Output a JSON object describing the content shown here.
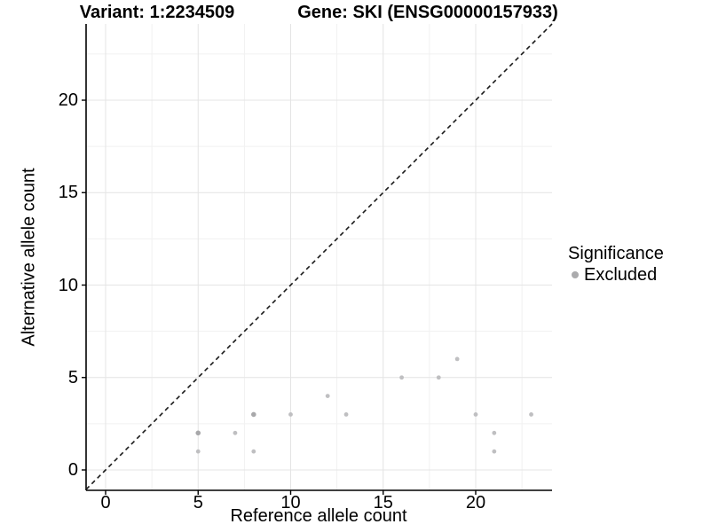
{
  "header": {
    "left_title": "Variant: 1:2234509",
    "right_title": "Gene: SKI (ENSG00000157933)"
  },
  "chart_data": {
    "type": "scatter",
    "title": "Variant: 1:2234509 | Gene: SKI (ENSG00000157933)",
    "xlabel": "Reference allele count",
    "ylabel": "Alternative allele count",
    "xlim": [
      -1.06,
      24.15
    ],
    "ylim": [
      -1.06,
      24.15
    ],
    "x_ticks": [
      0,
      5,
      10,
      15,
      20
    ],
    "y_ticks": [
      0,
      5,
      10,
      15,
      20
    ],
    "x_minor_ticks": [
      2.5,
      7.5,
      12.5,
      17.5,
      22.5
    ],
    "y_minor_ticks": [
      2.5,
      7.5,
      12.5,
      17.5,
      22.5
    ],
    "grid": {
      "major_color": "#e4e4e4",
      "minor_color": "#f1f1f1",
      "background": "#ffffff"
    },
    "axis_color": "#000000",
    "identity_line": {
      "style": "dashed",
      "slope": 1,
      "intercept": 0,
      "color": "#1a1a1a"
    },
    "series": [
      {
        "name": "Excluded",
        "color": "#bfbfc1",
        "overlap_color": "#a8a8aa",
        "points": [
          {
            "x": 5,
            "y": 1,
            "weight": 1
          },
          {
            "x": 5,
            "y": 2,
            "weight": 2
          },
          {
            "x": 7,
            "y": 2,
            "weight": 1
          },
          {
            "x": 8,
            "y": 1,
            "weight": 1
          },
          {
            "x": 8,
            "y": 3,
            "weight": 2
          },
          {
            "x": 10,
            "y": 3,
            "weight": 1
          },
          {
            "x": 12,
            "y": 4,
            "weight": 1
          },
          {
            "x": 13,
            "y": 3,
            "weight": 1
          },
          {
            "x": 16,
            "y": 5,
            "weight": 1
          },
          {
            "x": 18,
            "y": 5,
            "weight": 1
          },
          {
            "x": 19,
            "y": 6,
            "weight": 1
          },
          {
            "x": 20,
            "y": 3,
            "weight": 1
          },
          {
            "x": 21,
            "y": 1,
            "weight": 1
          },
          {
            "x": 21,
            "y": 2,
            "weight": 1
          },
          {
            "x": 23,
            "y": 3,
            "weight": 1
          }
        ]
      }
    ],
    "legend": {
      "position": "right",
      "title": "Significance",
      "items": [
        {
          "label": "Excluded",
          "color": "#ababad"
        }
      ]
    }
  }
}
